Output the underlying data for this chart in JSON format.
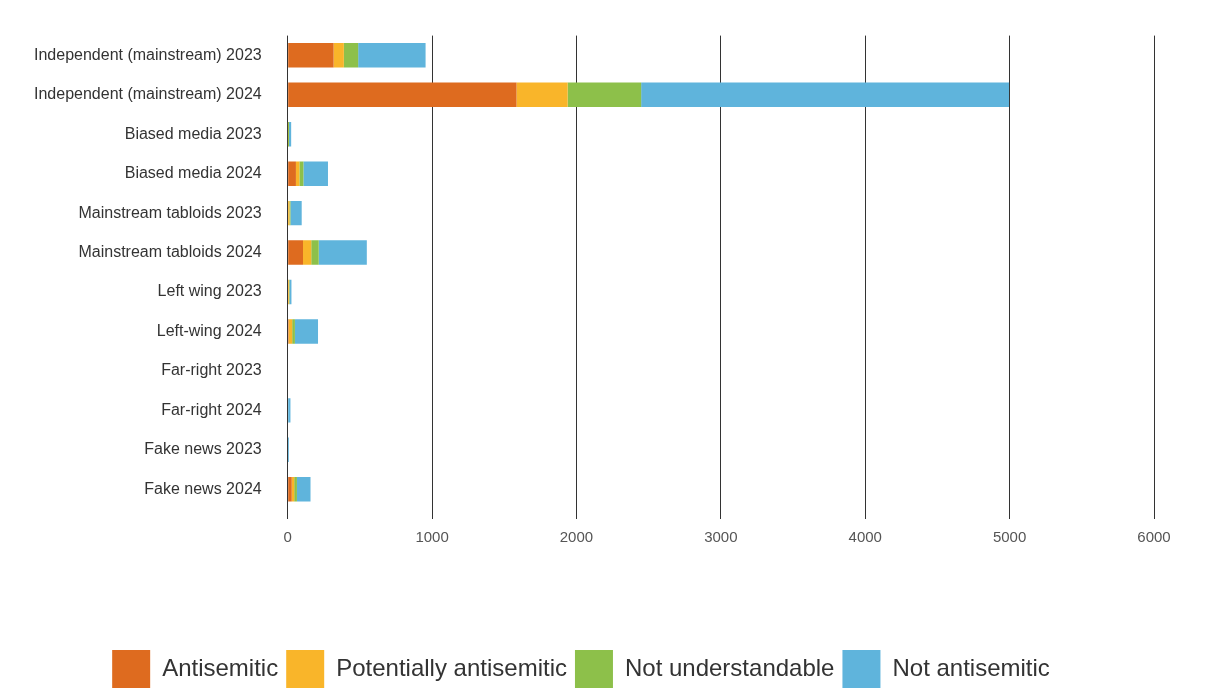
{
  "chart_data": {
    "type": "bar",
    "orientation": "horizontal",
    "stacked": true,
    "grid": "x",
    "legend": "bottom",
    "categories": [
      "Independent (mainstream) 2023",
      "Independent (mainstream) 2024",
      "Biased media 2023",
      "Biased media 2024",
      "Mainstream tabloids 2023",
      "Mainstream tabloids 2024",
      "Left wing 2023",
      "Left-wing 2024",
      "Far-right 2023",
      "Far-right 2024",
      "Fake news 2023",
      "Fake news 2024"
    ],
    "xlim": [
      0,
      6000
    ],
    "xticks": [
      0,
      1000,
      2000,
      3000,
      4000,
      5000,
      6000
    ],
    "series": [
      {
        "name": "Antisemitic",
        "color": "#de6b1f",
        "values": [
          318,
          1585,
          null,
          57,
          0,
          106,
          0,
          7,
          0,
          0,
          0,
          28
        ]
      },
      {
        "name": "Potentially antisemitic",
        "color": "#f9b52a",
        "values": [
          71,
          354,
          1,
          24,
          12,
          57,
          9,
          24,
          0,
          0,
          0,
          17
        ]
      },
      {
        "name": "Not understandable",
        "color": "#8dc04a",
        "values": [
          99,
          509,
          8,
          28,
          7,
          52,
          3,
          19,
          0,
          0,
          0,
          19
        ]
      },
      {
        "name": "Not antisemitic",
        "color": "#5fb4dc",
        "values": [
          467,
          2548,
          15,
          170,
          78,
          333,
          14,
          160,
          0,
          19,
          9,
          94
        ]
      }
    ]
  }
}
